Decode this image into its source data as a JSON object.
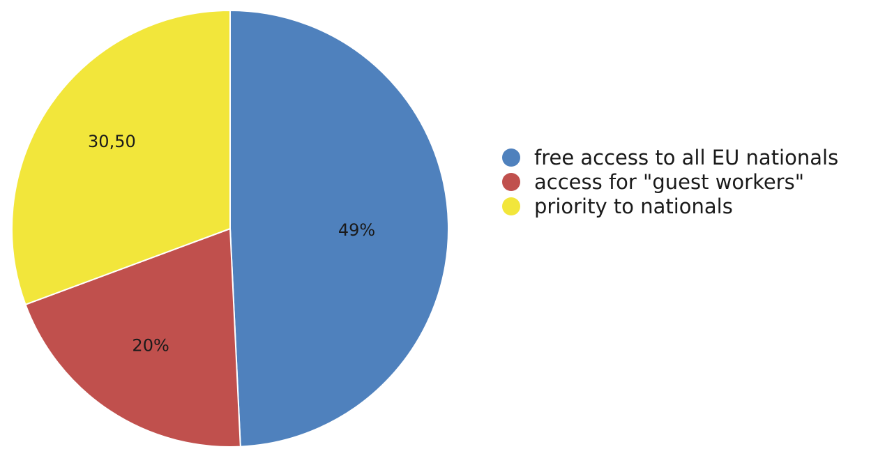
{
  "chart_data": {
    "type": "pie",
    "title": "",
    "start_angle": "top",
    "direction": "clockwise",
    "legend_position": "right",
    "slices": [
      {
        "name": "free access to all EU nationals",
        "value": 49,
        "label": "49%",
        "color": "#4f81bd"
      },
      {
        "name": "access for \"guest workers\"",
        "value": 20,
        "label": "20%",
        "color": "#c0504d"
      },
      {
        "name": "priority to nationals",
        "value": 30.5,
        "label": "30,50",
        "color": "#f2e63b"
      }
    ]
  }
}
